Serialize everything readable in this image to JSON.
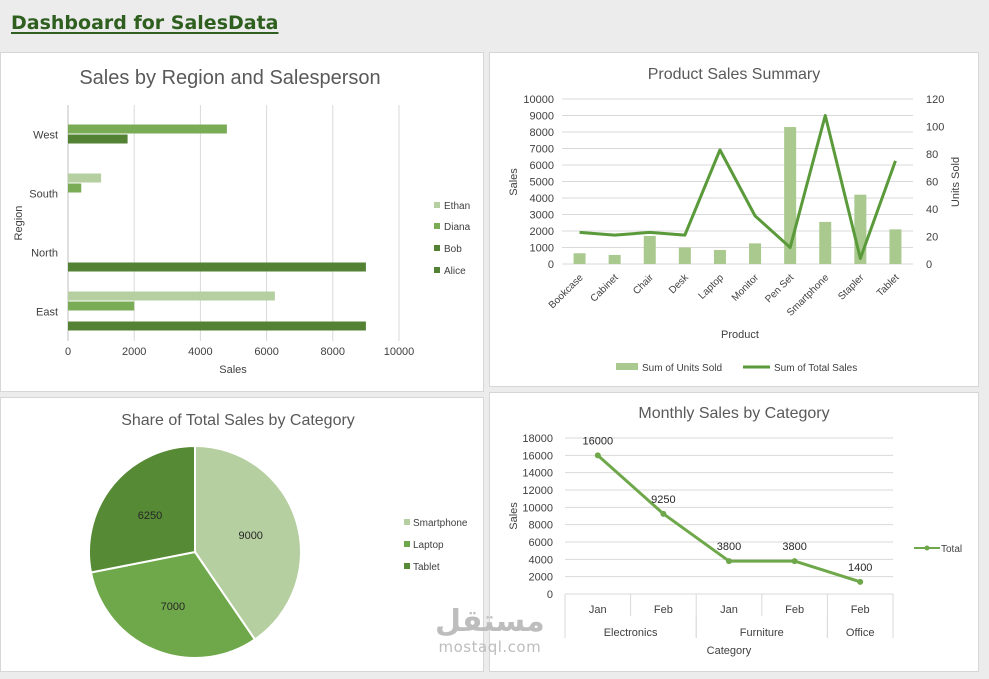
{
  "page_title": "Dashboard for SalesData",
  "watermark": {
    "arabic": "مستقل",
    "latin": "mostaql.com"
  },
  "colors": {
    "light": "#b5cfa0",
    "mid": "#8fb972",
    "dark": "#548235",
    "darker": "#447028",
    "line": "#5a9a3a"
  },
  "chart_data": [
    {
      "type": "bar",
      "orientation": "horizontal",
      "title": "Sales by Region and Salesperson",
      "xlabel": "Sales",
      "ylabel": "Region",
      "categories": [
        "East",
        "North",
        "South",
        "West"
      ],
      "xlim": [
        0,
        10000
      ],
      "xticks": [
        0,
        2000,
        4000,
        6000,
        8000,
        10000
      ],
      "series": [
        {
          "name": "Alice",
          "values": [
            9000,
            9000,
            0,
            0
          ],
          "color": "#548235"
        },
        {
          "name": "Bob",
          "values": [
            0,
            0,
            0,
            1800
          ],
          "color": "#548235"
        },
        {
          "name": "Diana",
          "values": [
            2000,
            0,
            400,
            4800
          ],
          "color": "#7aab55"
        },
        {
          "name": "Ethan",
          "values": [
            6250,
            0,
            1000,
            0
          ],
          "color": "#b5cfa0"
        }
      ],
      "legend_order": [
        "Ethan",
        "Diana",
        "Bob",
        "Alice"
      ],
      "legend": "right",
      "grid": true
    },
    {
      "type": "bar+line",
      "title": "Product Sales Summary",
      "xlabel": "Product",
      "ylabel": "Sales",
      "y2label": "Units Sold",
      "categories": [
        "Bookcase",
        "Cabinet",
        "Chair",
        "Desk",
        "Laptop",
        "Monitor",
        "Pen Set",
        "Smartphone",
        "Stapler",
        "Tablet"
      ],
      "ylim": [
        0,
        10000
      ],
      "yticks": [
        0,
        1000,
        2000,
        3000,
        4000,
        5000,
        6000,
        7000,
        8000,
        9000,
        10000
      ],
      "y2lim": [
        0,
        120
      ],
      "y2ticks": [
        0,
        20,
        40,
        60,
        80,
        100,
        120
      ],
      "series": [
        {
          "name": "Sum of Units Sold",
          "type": "bar",
          "axis": "left",
          "values": [
            650,
            550,
            1700,
            1000,
            850,
            1250,
            8300,
            2550,
            4200,
            2100
          ],
          "color": "#a9c98e"
        },
        {
          "name": "Sum of Total Sales",
          "type": "line",
          "axis": "right",
          "values": [
            23,
            21,
            23,
            21,
            83,
            35,
            12,
            108,
            4,
            75
          ],
          "color": "#5a9a3a"
        }
      ],
      "legend": "bottom",
      "grid": true
    },
    {
      "type": "pie",
      "title": "Share of Total Sales by Category",
      "labels": [
        "Smartphone",
        "Laptop",
        "Tablet"
      ],
      "values": [
        9000,
        7000,
        6250
      ],
      "colors": [
        "#b5cfa0",
        "#6fa84a",
        "#568a34"
      ],
      "legend": "right"
    },
    {
      "type": "line",
      "title": "Monthly Sales by Category",
      "xlabel": "Category",
      "ylabel": "Sales",
      "categories": [
        "Jan",
        "Feb",
        "Jan",
        "Feb",
        "Feb"
      ],
      "groups": [
        {
          "name": "Electronics",
          "span": 2
        },
        {
          "name": "Furniture",
          "span": 2
        },
        {
          "name": "Office",
          "span": 1
        }
      ],
      "ylim": [
        0,
        18000
      ],
      "yticks": [
        0,
        2000,
        4000,
        6000,
        8000,
        10000,
        12000,
        14000,
        16000,
        18000
      ],
      "series": [
        {
          "name": "Total",
          "values": [
            16000,
            9250,
            3800,
            3800,
            1400
          ],
          "color": "#6fa84a"
        }
      ],
      "data_labels": [
        "16000",
        "9250",
        "3800",
        "3800",
        "1400"
      ],
      "legend": "right",
      "grid": true
    }
  ]
}
